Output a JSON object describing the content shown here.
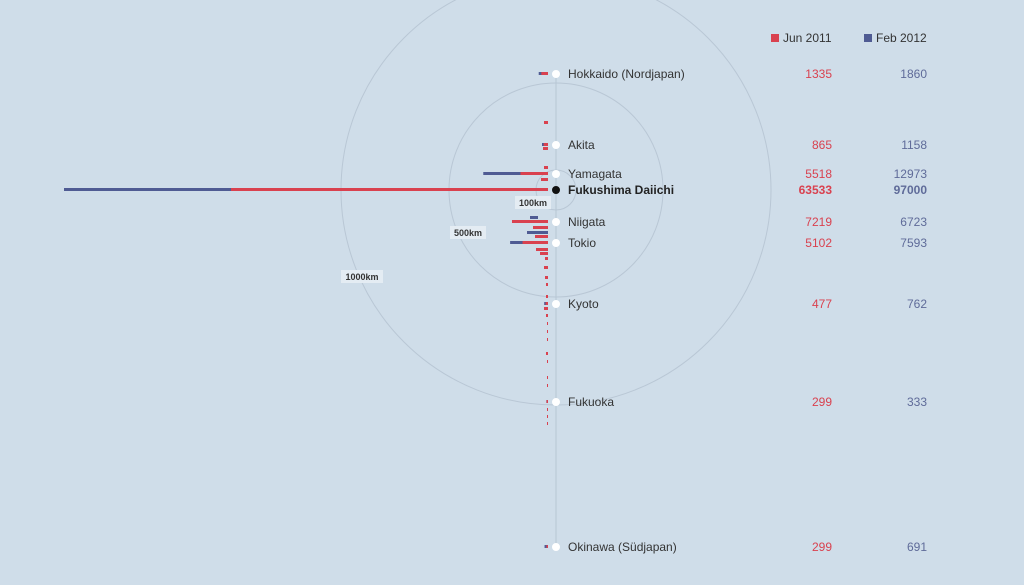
{
  "legend": [
    {
      "label": "Jun 2011",
      "color": "#d9414f"
    },
    {
      "label": "Feb 2012",
      "color": "#4f5b93"
    }
  ],
  "rings": [
    "100km",
    "500km",
    "1000km"
  ],
  "chart_data": {
    "type": "bar",
    "orientation": "horizontal",
    "series": [
      {
        "name": "Jun 2011",
        "color": "#d9414f"
      },
      {
        "name": "Feb 2012",
        "color": "#4f5b93"
      }
    ],
    "places": [
      {
        "name": "Hokkaido (Nordjapan)",
        "jun": 1335,
        "feb": 1860
      },
      {
        "name": "Akita",
        "jun": 865,
        "feb": 1158
      },
      {
        "name": "Yamagata",
        "jun": 5518,
        "feb": 12973
      },
      {
        "name": "Fukushima Daiichi",
        "jun": 63533,
        "feb": 97000,
        "highlight": true
      },
      {
        "name": "Niigata",
        "jun": 7219,
        "feb": 6723
      },
      {
        "name": "Tokio",
        "jun": 5102,
        "feb": 7593
      },
      {
        "name": "Kyoto",
        "jun": 477,
        "feb": 762
      },
      {
        "name": "Fukuoka",
        "jun": 299,
        "feb": 333
      },
      {
        "name": "Okinawa (Südjapan)",
        "jun": 299,
        "feb": 691
      }
    ]
  }
}
